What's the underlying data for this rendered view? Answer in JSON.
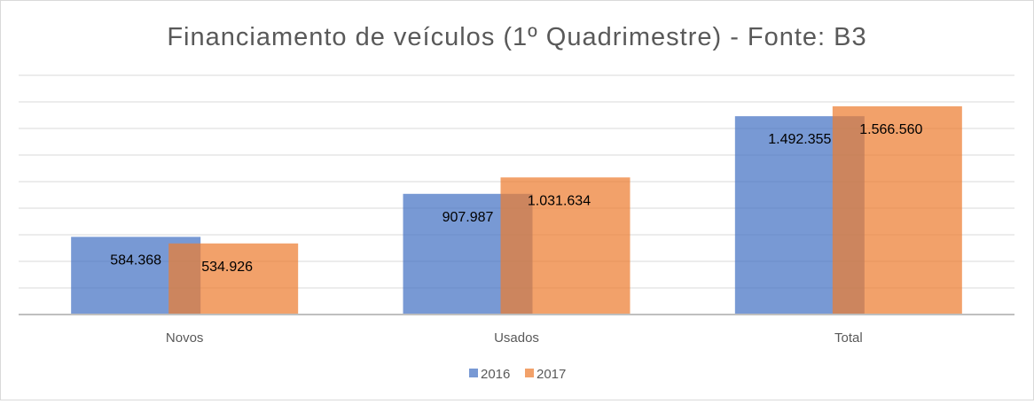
{
  "chart_data": {
    "type": "bar",
    "title": "Financiamento de veículos (1º Quadrimestre) - Fonte: B3",
    "xlabel": "",
    "ylabel": "",
    "categories": [
      "Novos",
      "Usados",
      "Total"
    ],
    "series": [
      {
        "name": "2016",
        "values": [
          584368,
          907987,
          1492355
        ],
        "labels": [
          "584.368",
          "907.987",
          "1.492.355"
        ],
        "color": "#4472c4"
      },
      {
        "name": "2017",
        "values": [
          534926,
          1031634,
          1566560
        ],
        "labels": [
          "534.926",
          "1.031.634",
          "1.566.560"
        ],
        "color": "#ed7d31"
      }
    ],
    "ylim": [
      0,
      1800000
    ],
    "y_axis_visible": false,
    "grid": true,
    "legend": "bottom",
    "bars_overlap": true
  }
}
